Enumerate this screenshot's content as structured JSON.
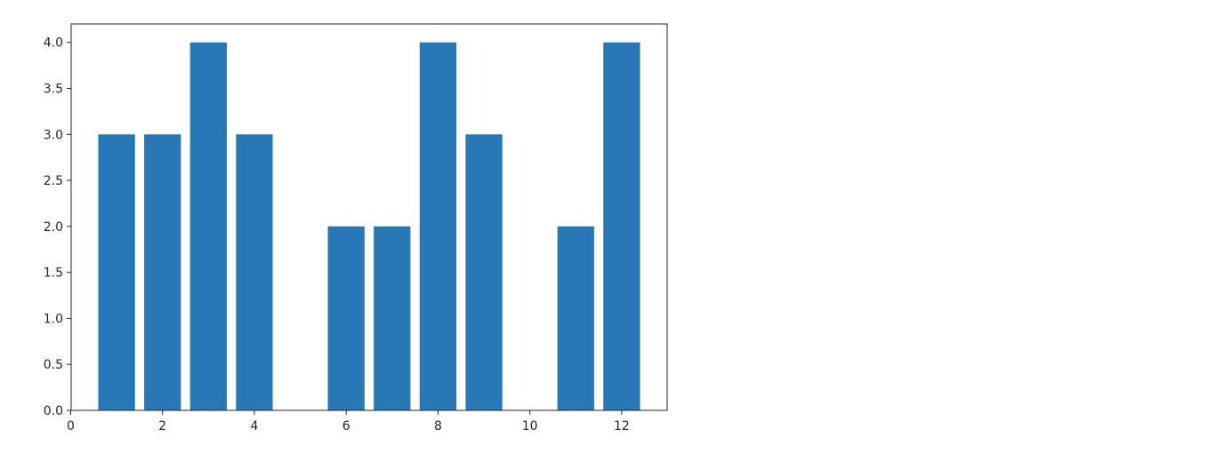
{
  "chart_data": {
    "type": "bar",
    "x": [
      1,
      2,
      3,
      4,
      6,
      7,
      8,
      9,
      11,
      12
    ],
    "values": [
      3,
      3,
      4,
      3,
      2,
      2,
      4,
      3,
      2,
      4
    ],
    "bar_width": 0.8,
    "color": "#2878b5",
    "title": "",
    "xlabel": "",
    "ylabel": "",
    "xlim": [
      0.01,
      12.99
    ],
    "ylim": [
      0,
      4.2
    ],
    "xticks": [
      0,
      2,
      4,
      6,
      8,
      10,
      12
    ],
    "xtick_labels": [
      "0",
      "2",
      "4",
      "6",
      "8",
      "10",
      "12"
    ],
    "yticks": [
      0,
      0.5,
      1,
      1.5,
      2,
      2.5,
      3,
      3.5,
      4
    ],
    "ytick_labels": [
      "0.0",
      "0.5",
      "1.0",
      "1.5",
      "2.0",
      "2.5",
      "3.0",
      "3.5",
      "4.0"
    ],
    "grid": false,
    "legend": "none"
  }
}
